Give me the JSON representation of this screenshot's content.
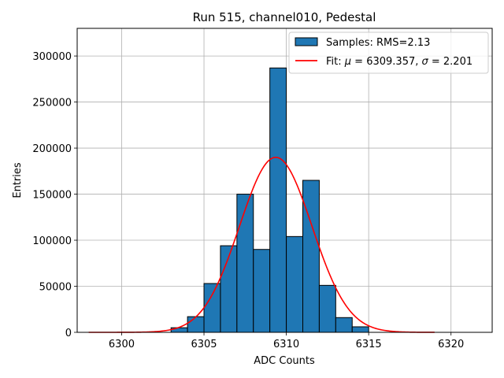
{
  "chart_data": {
    "type": "bar",
    "title": "Run 515, channel010, Pedestal",
    "xlabel": "ADC Counts",
    "ylabel": "Entries",
    "xlim": [
      6297.3,
      6322.5
    ],
    "ylim": [
      0,
      330000
    ],
    "xticks": [
      6300,
      6305,
      6310,
      6315,
      6320
    ],
    "yticks": [
      0,
      50000,
      100000,
      150000,
      200000,
      250000,
      300000
    ],
    "grid": true,
    "legend_position": "top-right",
    "histogram": {
      "name": "Samples: RMS=2.13",
      "color": "#1f77b4",
      "edgecolor": "#000000",
      "bin_width": 1,
      "bin_starts": [
        6303,
        6304,
        6305,
        6306,
        6307,
        6308,
        6309,
        6310,
        6311,
        6312,
        6313,
        6314
      ],
      "values": [
        5000,
        17000,
        53000,
        94000,
        150000,
        90000,
        287000,
        104000,
        165000,
        51000,
        16000,
        6000
      ]
    },
    "fit": {
      "name": "Fit: μ = 6309.357, σ = 2.201",
      "label_parts": [
        "Fit: ",
        "μ",
        " = 6309.357, ",
        "σ",
        " = 2.201"
      ],
      "color": "#ff0000",
      "mu": 6309.357,
      "sigma": 2.201,
      "amplitude": 190000,
      "x_range": [
        6298,
        6319
      ]
    }
  }
}
